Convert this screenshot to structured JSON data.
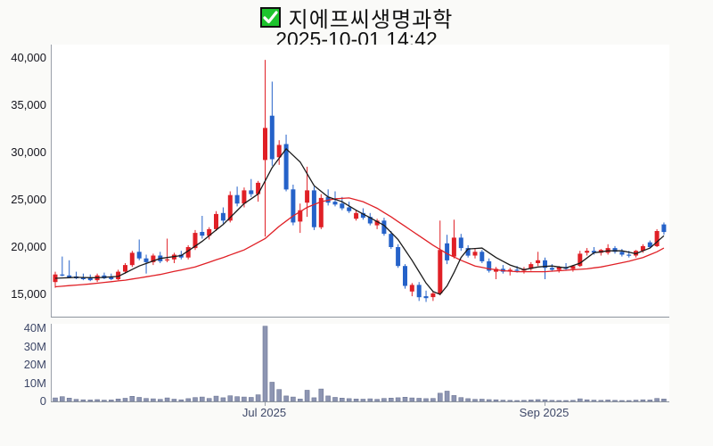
{
  "header": {
    "check_icon": "green-checkbox-with-white-checkmark",
    "title": "지에프씨생명과학",
    "timestamp": "2025-10-01 14:42"
  },
  "chart_data": {
    "type": "candlestick",
    "title": "지에프씨생명과학",
    "subtitle": "2025-10-01 14:42",
    "panels": [
      "price",
      "volume"
    ],
    "grid": false,
    "legend": "none",
    "price_axis": {
      "ticks": [
        "40,000",
        "35,000",
        "30,000",
        "25,000",
        "20,000",
        "15,000"
      ],
      "tick_values": [
        40000,
        35000,
        30000,
        25000,
        20000,
        15000
      ],
      "ylim": [
        12600,
        41400
      ]
    },
    "volume_axis": {
      "ticks": [
        "40M",
        "30M",
        "20M",
        "10M",
        "0"
      ],
      "tick_values": [
        40,
        30,
        20,
        10,
        0
      ],
      "vmax_millions": 42.5
    },
    "x_ticks": [
      {
        "index": 30,
        "label": "Jul 2025"
      },
      {
        "index": 70,
        "label": "Sep 2025"
      }
    ],
    "candle_format": [
      "open",
      "high",
      "low",
      "close",
      "volume_millions"
    ],
    "candles": [
      [
        16300,
        17400,
        15700,
        17100,
        1.9
      ],
      [
        17100,
        19000,
        16900,
        17000,
        2.6
      ],
      [
        17000,
        18600,
        16800,
        16800,
        1.8
      ],
      [
        16900,
        17400,
        16600,
        16700,
        1.1
      ],
      [
        16800,
        17200,
        16500,
        16600,
        0.9
      ],
      [
        16700,
        17100,
        16400,
        16500,
        0.8
      ],
      [
        16500,
        17200,
        16300,
        17000,
        1.0
      ],
      [
        17000,
        17300,
        16600,
        16700,
        0.7
      ],
      [
        16800,
        17200,
        16500,
        16600,
        0.8
      ],
      [
        16600,
        17600,
        16500,
        17400,
        1.3
      ],
      [
        17400,
        18300,
        17200,
        18100,
        1.7
      ],
      [
        18100,
        19600,
        17900,
        19400,
        2.8
      ],
      [
        19500,
        20800,
        18600,
        18800,
        2.2
      ],
      [
        18800,
        19200,
        17200,
        18400,
        1.6
      ],
      [
        18400,
        19300,
        18100,
        19100,
        1.4
      ],
      [
        19100,
        19500,
        18300,
        18500,
        1.1
      ],
      [
        18600,
        20900,
        18400,
        18700,
        1.9
      ],
      [
        18700,
        19400,
        18300,
        19200,
        1.2
      ],
      [
        19200,
        19600,
        18700,
        18900,
        0.9
      ],
      [
        18900,
        20200,
        18700,
        20000,
        1.5
      ],
      [
        19900,
        21800,
        19700,
        21500,
        2.1
      ],
      [
        21600,
        23300,
        20900,
        21200,
        2.4
      ],
      [
        21200,
        22100,
        20800,
        21900,
        1.6
      ],
      [
        21900,
        23800,
        21700,
        23500,
        2.9
      ],
      [
        23600,
        24200,
        22500,
        22800,
        2.0
      ],
      [
        22800,
        25900,
        22600,
        25500,
        3.1
      ],
      [
        25500,
        26400,
        24300,
        24600,
        2.6
      ],
      [
        24600,
        26300,
        24200,
        26000,
        2.4
      ],
      [
        26000,
        27200,
        25300,
        25600,
        2.2
      ],
      [
        25600,
        27000,
        24800,
        26800,
        3.6
      ],
      [
        29200,
        39800,
        21100,
        32600,
        41.2
      ],
      [
        33900,
        37500,
        28600,
        29300,
        10.5
      ],
      [
        29500,
        31300,
        28700,
        30800,
        6.5
      ],
      [
        30900,
        31900,
        25900,
        26100,
        3.0
      ],
      [
        26100,
        26600,
        22300,
        22600,
        2.4
      ],
      [
        22700,
        24600,
        21500,
        23900,
        1.3
      ],
      [
        24700,
        28500,
        23200,
        26000,
        6.1
      ],
      [
        26000,
        26400,
        21800,
        22100,
        2.0
      ],
      [
        22100,
        25600,
        21900,
        25200,
        6.8
      ],
      [
        25300,
        26100,
        24400,
        24700,
        3.0
      ],
      [
        24800,
        25900,
        24300,
        24500,
        2.2
      ],
      [
        24600,
        25300,
        23900,
        24100,
        1.8
      ],
      [
        24200,
        24800,
        23600,
        23800,
        1.5
      ],
      [
        23000,
        23900,
        22800,
        23600,
        1.3
      ],
      [
        23600,
        24100,
        22900,
        23100,
        1.2
      ],
      [
        23200,
        23600,
        22300,
        22500,
        1.4
      ],
      [
        22300,
        23000,
        21900,
        22800,
        1.1
      ],
      [
        22800,
        23100,
        21200,
        21400,
        1.6
      ],
      [
        21400,
        21700,
        19800,
        20000,
        1.8
      ],
      [
        20000,
        20300,
        17800,
        18000,
        2.0
      ],
      [
        18000,
        18200,
        15600,
        15900,
        2.3
      ],
      [
        15300,
        16200,
        14800,
        16000,
        1.9
      ],
      [
        16000,
        16300,
        14300,
        14700,
        1.7
      ],
      [
        14800,
        15400,
        14200,
        14600,
        1.5
      ],
      [
        14700,
        15300,
        14300,
        15100,
        1.6
      ],
      [
        15100,
        22800,
        14900,
        19700,
        4.5
      ],
      [
        20400,
        21300,
        18200,
        18600,
        5.6
      ],
      [
        19000,
        22900,
        18800,
        21000,
        3.2
      ],
      [
        21000,
        21400,
        19600,
        19900,
        2.1
      ],
      [
        19900,
        20200,
        18900,
        19100,
        1.5
      ],
      [
        19100,
        19800,
        18800,
        19500,
        1.1
      ],
      [
        19500,
        19700,
        18300,
        18500,
        1.2
      ],
      [
        18500,
        18800,
        17300,
        17500,
        1.0
      ],
      [
        17400,
        17900,
        16600,
        17700,
        0.9
      ],
      [
        17700,
        18100,
        17200,
        17400,
        0.7
      ],
      [
        17400,
        17800,
        17000,
        17600,
        0.6
      ],
      [
        17600,
        18000,
        17300,
        17500,
        0.5
      ],
      [
        17500,
        17900,
        17200,
        17700,
        0.6
      ],
      [
        17700,
        18400,
        17500,
        18200,
        0.8
      ],
      [
        18300,
        19500,
        18000,
        18600,
        1.0
      ],
      [
        18600,
        18900,
        16600,
        17800,
        0.9
      ],
      [
        17800,
        18200,
        17400,
        17600,
        0.6
      ],
      [
        17600,
        18000,
        17300,
        17900,
        0.5
      ],
      [
        17900,
        18300,
        17500,
        17700,
        0.5
      ],
      [
        17700,
        18100,
        17400,
        18000,
        0.6
      ],
      [
        18000,
        19600,
        17900,
        19300,
        1.4
      ],
      [
        19400,
        19900,
        19100,
        19600,
        0.9
      ],
      [
        19600,
        20000,
        19200,
        19400,
        0.7
      ],
      [
        19400,
        19800,
        19100,
        19700,
        0.6
      ],
      [
        19400,
        20300,
        19200,
        19900,
        0.8
      ],
      [
        19900,
        20100,
        19300,
        19500,
        0.6
      ],
      [
        19500,
        19800,
        19000,
        19200,
        0.5
      ],
      [
        19200,
        19600,
        18900,
        19100,
        0.5
      ],
      [
        19100,
        19700,
        18900,
        19600,
        0.7
      ],
      [
        19600,
        20300,
        19400,
        20100,
        0.9
      ],
      [
        20500,
        20700,
        19900,
        20000,
        0.8
      ],
      [
        20100,
        21900,
        20000,
        21700,
        1.6
      ],
      [
        22400,
        22600,
        21300,
        21600,
        1.3
      ]
    ],
    "ma_short_anchors": [
      [
        0,
        16700
      ],
      [
        3,
        16800
      ],
      [
        6,
        16750
      ],
      [
        9,
        16900
      ],
      [
        12,
        18000
      ],
      [
        15,
        18800
      ],
      [
        18,
        19100
      ],
      [
        21,
        20600
      ],
      [
        24,
        22400
      ],
      [
        27,
        24600
      ],
      [
        29,
        25600
      ],
      [
        31,
        28400
      ],
      [
        33,
        30400
      ],
      [
        35,
        29000
      ],
      [
        37,
        26500
      ],
      [
        39,
        25300
      ],
      [
        41,
        24800
      ],
      [
        43,
        23900
      ],
      [
        45,
        23100
      ],
      [
        47,
        22300
      ],
      [
        49,
        20800
      ],
      [
        51,
        18600
      ],
      [
        53,
        16200
      ],
      [
        54,
        15300
      ],
      [
        55,
        15000
      ],
      [
        56,
        15900
      ],
      [
        57,
        17300
      ],
      [
        58,
        18900
      ],
      [
        59,
        19800
      ],
      [
        61,
        19900
      ],
      [
        63,
        18900
      ],
      [
        65,
        18100
      ],
      [
        67,
        17600
      ],
      [
        69,
        17900
      ],
      [
        71,
        18000
      ],
      [
        73,
        17800
      ],
      [
        75,
        18300
      ],
      [
        77,
        19400
      ],
      [
        79,
        19600
      ],
      [
        81,
        19600
      ],
      [
        83,
        19300
      ],
      [
        85,
        19900
      ],
      [
        87,
        21200
      ]
    ],
    "ma_long_anchors": [
      [
        0,
        15800
      ],
      [
        5,
        16100
      ],
      [
        10,
        16500
      ],
      [
        15,
        17100
      ],
      [
        20,
        17900
      ],
      [
        24,
        18900
      ],
      [
        27,
        19700
      ],
      [
        30,
        20900
      ],
      [
        32,
        22200
      ],
      [
        34,
        23300
      ],
      [
        36,
        24200
      ],
      [
        38,
        24800
      ],
      [
        40,
        25100
      ],
      [
        42,
        25200
      ],
      [
        44,
        24800
      ],
      [
        46,
        24100
      ],
      [
        48,
        23200
      ],
      [
        50,
        22200
      ],
      [
        52,
        21200
      ],
      [
        54,
        20200
      ],
      [
        56,
        19300
      ],
      [
        58,
        18600
      ],
      [
        60,
        18000
      ],
      [
        62,
        17700
      ],
      [
        64,
        17500
      ],
      [
        66,
        17400
      ],
      [
        68,
        17400
      ],
      [
        70,
        17400
      ],
      [
        72,
        17500
      ],
      [
        74,
        17600
      ],
      [
        76,
        17700
      ],
      [
        78,
        17900
      ],
      [
        80,
        18200
      ],
      [
        82,
        18500
      ],
      [
        84,
        18900
      ],
      [
        86,
        19500
      ],
      [
        87,
        19900
      ]
    ],
    "colors": {
      "up_candle": "#e02026",
      "down_candle": "#2562c9",
      "ma_short": "#1a1a1a",
      "ma_long": "#e02026",
      "volume_fill": "#8d95b2",
      "volume_stroke": "#6e7795",
      "axis_line": "#9aa0aa",
      "price_label": "#15151e",
      "secondary_label": "#3e4868",
      "check_green": "#1dc42d",
      "background": "#fafaf8"
    }
  }
}
